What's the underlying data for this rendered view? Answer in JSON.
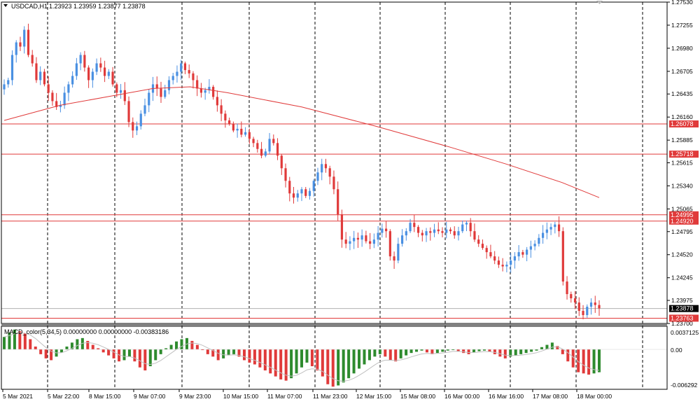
{
  "header": {
    "symbol_label": "USDCAD,H1",
    "ohlc": "1.23923 1.23959 1.23877 1.23878"
  },
  "indicator": {
    "label": "MACD_color(5,34,5) 0.00000000 0.00000000 -0.00383186",
    "scale_top": "0.0037125",
    "scale_zero": "0.00",
    "scale_bottom": "-0.006292"
  },
  "colors": {
    "bull": "#4a90e2",
    "bear": "#e03a3a",
    "hist_pos": "#2e8b2e",
    "hist_neg": "#e03a3a",
    "ma": "#e03a3a",
    "level": "#e03a3a",
    "grid": "#000000"
  },
  "chart_data": {
    "type": "candlestick",
    "symbol": "USDCAD",
    "timeframe": "H1",
    "ylim": [
      1.237,
      1.2753
    ],
    "y_ticks": [
      "1.27530",
      "1.27255",
      "1.26980",
      "1.26705",
      "1.26435",
      "1.26160",
      "1.25885",
      "1.25615",
      "1.25340",
      "1.25065",
      "1.24795",
      "1.24520",
      "1.24245",
      "1.23975",
      "1.23700"
    ],
    "x_ticks": [
      "5 Mar 2021",
      "5 Mar 22:00",
      "8 Mar 15:00",
      "9 Mar 07:00",
      "9 Mar 23:00",
      "10 Mar 15:00",
      "11 Mar 07:00",
      "11 Mar 23:00",
      "12 Mar 15:00",
      "15 Mar 08:00",
      "16 Mar 00:00",
      "16 Mar 16:00",
      "17 Mar 08:00",
      "18 Mar 00:00"
    ],
    "levels": [
      {
        "label": "1.26078",
        "value": 1.26078
      },
      {
        "label": "1.25718",
        "value": 1.25718
      },
      {
        "label": "1.24995",
        "value": 1.24995
      },
      {
        "label": "1.24920",
        "value": 1.2492
      },
      {
        "label": "1.23763",
        "value": 1.23763
      }
    ],
    "current_price": {
      "label": "1.23878",
      "value": 1.23878
    },
    "closes": [
      1.2655,
      1.266,
      1.269,
      1.2705,
      1.27,
      1.272,
      1.269,
      1.268,
      1.266,
      1.267,
      1.2655,
      1.2645,
      1.2635,
      1.2628,
      1.263,
      1.2645,
      1.2655,
      1.2665,
      1.268,
      1.269,
      1.2675,
      1.266,
      1.267,
      1.268,
      1.2675,
      1.2665,
      1.267,
      1.2655,
      1.2645,
      1.2648,
      1.2635,
      1.261,
      1.26,
      1.2605,
      1.262,
      1.263,
      1.2645,
      1.2655,
      1.265,
      1.264,
      1.2648,
      1.266,
      1.2665,
      1.267,
      1.268,
      1.2672,
      1.2668,
      1.266,
      1.265,
      1.2645,
      1.2648,
      1.2652,
      1.264,
      1.263,
      1.262,
      1.2612,
      1.2608,
      1.26,
      1.2602,
      1.2595,
      1.2598,
      1.259,
      1.2585,
      1.2578,
      1.257,
      1.2575,
      1.259,
      1.2585,
      1.257,
      1.2555,
      1.254,
      1.2525,
      1.252,
      1.2525,
      1.253,
      1.2522,
      1.2528,
      1.254,
      1.255,
      1.256,
      1.2555,
      1.2545,
      1.253,
      1.25,
      1.247,
      1.2465,
      1.2468,
      1.2472,
      1.247,
      1.2475,
      1.2468,
      1.2465,
      1.247,
      1.2478,
      1.2483,
      1.248,
      1.245,
      1.2445,
      1.2465,
      1.2475,
      1.248,
      1.249,
      1.2485,
      1.2478,
      1.2475,
      1.248,
      1.2478,
      1.2482,
      1.248,
      1.2478,
      1.2482,
      1.248,
      1.2475,
      1.248,
      1.2488,
      1.249,
      1.248,
      1.247,
      1.2465,
      1.246,
      1.2455,
      1.245,
      1.2445,
      1.244,
      1.2438,
      1.244,
      1.2445,
      1.245,
      1.2455,
      1.2452,
      1.2458,
      1.2462,
      1.2465,
      1.2472,
      1.2478,
      1.2482,
      1.2485,
      1.2488,
      1.248,
      1.242,
      1.2405,
      1.24,
      1.2395,
      1.2385,
      1.238,
      1.239,
      1.2395,
      1.2392,
      1.2388
    ],
    "ma_line": [
      [
        0,
        1.2612
      ],
      [
        30,
        1.263
      ],
      [
        60,
        1.2642
      ],
      [
        80,
        1.265
      ],
      [
        100,
        1.2652
      ],
      [
        120,
        1.2645
      ],
      [
        160,
        1.2628
      ],
      [
        200,
        1.2605
      ],
      [
        240,
        1.258
      ],
      [
        270,
        1.256
      ],
      [
        300,
        1.2538
      ],
      [
        320,
        1.252
      ]
    ],
    "macd_histogram": [
      0.0022,
      0.003,
      0.0035,
      0.0032,
      0.0028,
      0.0018,
      0.0005,
      -0.0008,
      -0.0015,
      -0.0018,
      -0.0012,
      -0.0005,
      0.0005,
      0.0012,
      0.0018,
      0.002,
      0.0015,
      0.0008,
      0.0002,
      -0.0005,
      -0.001,
      -0.0015,
      -0.002,
      -0.0018,
      -0.0012,
      -0.002,
      -0.003,
      -0.0035,
      -0.0028,
      -0.0018,
      -0.0008,
      0.0002,
      0.0008,
      0.0014,
      0.0018,
      0.002,
      0.0015,
      0.0008,
      0.0,
      -0.0008,
      -0.0012,
      -0.0018,
      -0.0015,
      -0.001,
      -0.0008,
      -0.0012,
      -0.0018,
      -0.0022,
      -0.0025,
      -0.003,
      -0.0035,
      -0.004,
      -0.0045,
      -0.005,
      -0.0052,
      -0.0048,
      -0.004,
      -0.003,
      -0.0022,
      -0.0028,
      -0.0035,
      -0.0045,
      -0.0058,
      -0.0062,
      -0.006,
      -0.0055,
      -0.0048,
      -0.004,
      -0.0032,
      -0.0025,
      -0.0018,
      -0.0012,
      -0.0008,
      -0.0012,
      -0.0018,
      -0.002,
      -0.0015,
      -0.001,
      -0.0006,
      -0.0004,
      -0.0002,
      -0.0005,
      -0.0008,
      -0.0006,
      -0.0004,
      -0.0002,
      0.0,
      -0.0003,
      -0.0006,
      -0.0008,
      -0.0005,
      -0.0003,
      -0.0002,
      -0.0004,
      -0.0008,
      -0.0012,
      -0.0015,
      -0.0012,
      -0.001,
      -0.0008,
      -0.0006,
      -0.0004,
      -0.0002,
      0.0004,
      0.0008,
      0.0012,
      0.0006,
      -0.0008,
      -0.002,
      -0.003,
      -0.0038,
      -0.004,
      -0.0042,
      -0.004,
      -0.0038
    ]
  }
}
